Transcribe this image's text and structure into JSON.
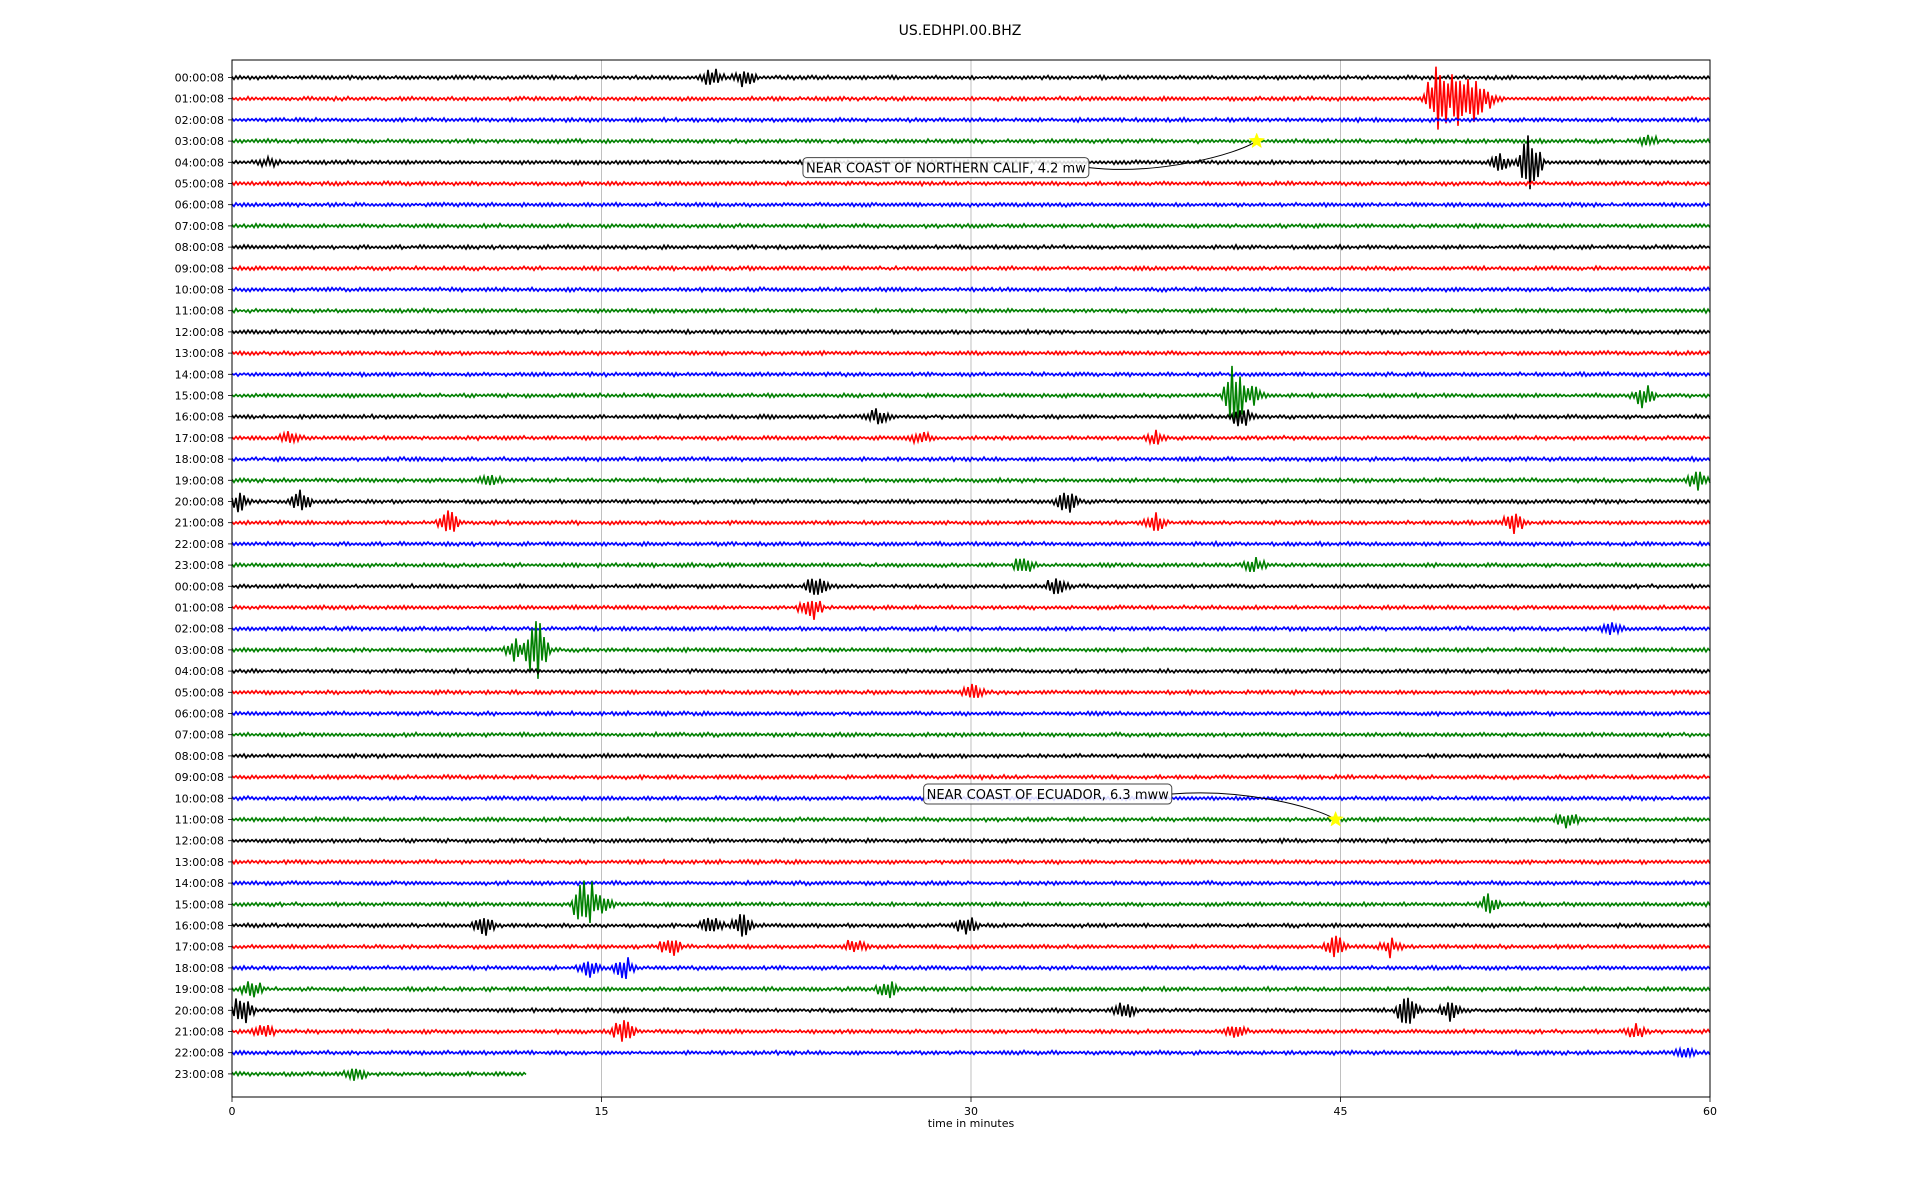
{
  "chart_data": {
    "type": "line",
    "title": "US.EDHPI.00.BHZ",
    "xlabel": "time in minutes",
    "ylabel": "",
    "xlim": [
      0,
      60
    ],
    "x_ticks": [
      "0",
      "15",
      "30",
      "45",
      "60"
    ],
    "x_tick_values": [
      0,
      15,
      30,
      45,
      60
    ],
    "grid_x": true,
    "row_colors": [
      "#000000",
      "#ff0000",
      "#0000ff",
      "#008000"
    ],
    "row_labels": [
      "00:00:08",
      "01:00:08",
      "02:00:08",
      "03:00:08",
      "04:00:08",
      "05:00:08",
      "06:00:08",
      "07:00:08",
      "08:00:08",
      "09:00:08",
      "10:00:08",
      "11:00:08",
      "12:00:08",
      "13:00:08",
      "14:00:08",
      "15:00:08",
      "16:00:08",
      "17:00:08",
      "18:00:08",
      "19:00:08",
      "20:00:08",
      "21:00:08",
      "22:00:08",
      "23:00:08",
      "00:00:08",
      "01:00:08",
      "02:00:08",
      "03:00:08",
      "04:00:08",
      "05:00:08",
      "06:00:08",
      "07:00:08",
      "08:00:08",
      "09:00:08",
      "10:00:08",
      "11:00:08",
      "12:00:08",
      "13:00:08",
      "14:00:08",
      "15:00:08",
      "16:00:08",
      "17:00:08",
      "18:00:08",
      "19:00:08",
      "20:00:08",
      "21:00:08",
      "22:00:08",
      "23:00:08"
    ],
    "last_row_end_minute": 12,
    "events": [
      {
        "row": 0,
        "minute": 19.5,
        "amp": 0.6
      },
      {
        "row": 0,
        "minute": 20.8,
        "amp": 0.5
      },
      {
        "row": 1,
        "minute": 48.9,
        "amp": 1.8
      },
      {
        "row": 1,
        "minute": 49.6,
        "amp": 1.4
      },
      {
        "row": 1,
        "minute": 50.3,
        "amp": 1.5
      },
      {
        "row": 1,
        "minute": 51.0,
        "amp": 0.6
      },
      {
        "row": 3,
        "minute": 57.5,
        "amp": 0.3
      },
      {
        "row": 4,
        "minute": 1.5,
        "amp": 0.3
      },
      {
        "row": 4,
        "minute": 52.7,
        "amp": 2.0
      },
      {
        "row": 4,
        "minute": 51.5,
        "amp": 0.5
      },
      {
        "row": 15,
        "minute": 40.7,
        "amp": 1.8
      },
      {
        "row": 15,
        "minute": 41.5,
        "amp": 0.6
      },
      {
        "row": 15,
        "minute": 57.3,
        "amp": 0.6
      },
      {
        "row": 16,
        "minute": 26.2,
        "amp": 0.5
      },
      {
        "row": 16,
        "minute": 41.0,
        "amp": 0.6
      },
      {
        "row": 17,
        "minute": 2.4,
        "amp": 0.4
      },
      {
        "row": 17,
        "minute": 28.0,
        "amp": 0.3
      },
      {
        "row": 17,
        "minute": 37.5,
        "amp": 0.3
      },
      {
        "row": 19,
        "minute": 10.5,
        "amp": 0.3
      },
      {
        "row": 19,
        "minute": 59.5,
        "amp": 0.5
      },
      {
        "row": 20,
        "minute": 0.3,
        "amp": 0.5
      },
      {
        "row": 20,
        "minute": 2.8,
        "amp": 0.6
      },
      {
        "row": 20,
        "minute": 33.9,
        "amp": 0.7
      },
      {
        "row": 21,
        "minute": 8.8,
        "amp": 0.6
      },
      {
        "row": 21,
        "minute": 37.5,
        "amp": 0.5
      },
      {
        "row": 21,
        "minute": 52.0,
        "amp": 0.6
      },
      {
        "row": 23,
        "minute": 32.2,
        "amp": 0.6
      },
      {
        "row": 23,
        "minute": 41.5,
        "amp": 0.5
      },
      {
        "row": 24,
        "minute": 23.7,
        "amp": 0.6
      },
      {
        "row": 24,
        "minute": 33.5,
        "amp": 0.6
      },
      {
        "row": 25,
        "minute": 23.5,
        "amp": 0.8
      },
      {
        "row": 26,
        "minute": 56.0,
        "amp": 0.3
      },
      {
        "row": 27,
        "minute": 12.4,
        "amp": 2.0
      },
      {
        "row": 27,
        "minute": 11.5,
        "amp": 0.6
      },
      {
        "row": 29,
        "minute": 30.1,
        "amp": 0.4
      },
      {
        "row": 35,
        "minute": 54.2,
        "amp": 0.5
      },
      {
        "row": 39,
        "minute": 14.3,
        "amp": 2.0
      },
      {
        "row": 39,
        "minute": 15.0,
        "amp": 0.6
      },
      {
        "row": 39,
        "minute": 51.0,
        "amp": 0.5
      },
      {
        "row": 40,
        "minute": 10.2,
        "amp": 0.5
      },
      {
        "row": 40,
        "minute": 19.5,
        "amp": 0.6
      },
      {
        "row": 40,
        "minute": 20.7,
        "amp": 0.6
      },
      {
        "row": 40,
        "minute": 29.8,
        "amp": 0.5
      },
      {
        "row": 41,
        "minute": 17.8,
        "amp": 0.6
      },
      {
        "row": 41,
        "minute": 25.3,
        "amp": 0.5
      },
      {
        "row": 41,
        "minute": 44.8,
        "amp": 0.6
      },
      {
        "row": 41,
        "minute": 47.0,
        "amp": 0.5
      },
      {
        "row": 42,
        "minute": 15.9,
        "amp": 0.6
      },
      {
        "row": 42,
        "minute": 14.5,
        "amp": 0.5
      },
      {
        "row": 43,
        "minute": 26.6,
        "amp": 0.5
      },
      {
        "row": 43,
        "minute": 0.8,
        "amp": 0.5
      },
      {
        "row": 44,
        "minute": 0.4,
        "amp": 0.8
      },
      {
        "row": 44,
        "minute": 47.7,
        "amp": 1.2
      },
      {
        "row": 44,
        "minute": 49.5,
        "amp": 0.6
      },
      {
        "row": 44,
        "minute": 36.2,
        "amp": 0.5
      },
      {
        "row": 45,
        "minute": 1.3,
        "amp": 0.5
      },
      {
        "row": 45,
        "minute": 15.9,
        "amp": 0.7
      },
      {
        "row": 45,
        "minute": 40.7,
        "amp": 0.5
      },
      {
        "row": 45,
        "minute": 57.0,
        "amp": 0.4
      },
      {
        "row": 46,
        "minute": 59.0,
        "amp": 0.3
      },
      {
        "row": 47,
        "minute": 5.0,
        "amp": 0.4
      }
    ],
    "annotations": [
      {
        "text": "NEAR COAST OF NORTHERN CALIF, 4.2 mw",
        "row": 3,
        "minute": 41.6,
        "label_row": 4.25,
        "label_minute": 23.3
      },
      {
        "text": "NEAR COAST OF ECUADOR, 6.3 mww",
        "row": 35,
        "minute": 44.8,
        "label_row": 33.8,
        "label_minute": 28.2
      }
    ],
    "marker_color": "#ffff00"
  }
}
